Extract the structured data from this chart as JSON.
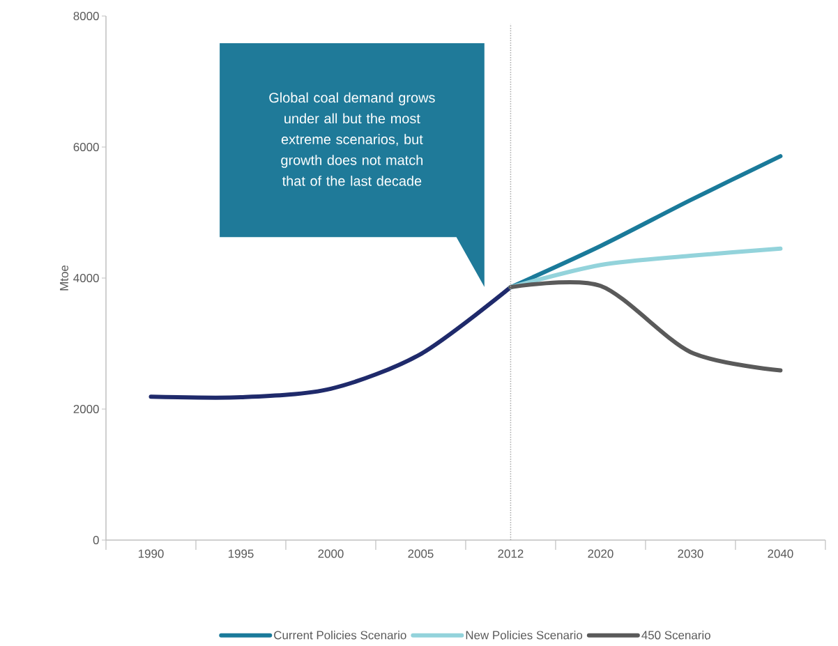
{
  "chart_data": {
    "type": "line",
    "ylabel": "Mtoe",
    "categories": [
      "1990",
      "1995",
      "2000",
      "2005",
      "2012",
      "2020",
      "2030",
      "2040"
    ],
    "series": [
      {
        "color": "#1f2a6b",
        "values": [
          2190,
          2180,
          2310,
          2840,
          3860,
          null,
          null,
          null
        ]
      },
      {
        "name": "Current Policies Scenario",
        "color": "#1a7a9a",
        "values": [
          null,
          null,
          null,
          null,
          3860,
          4490,
          5190,
          5860
        ]
      },
      {
        "name": "New Policies Scenario",
        "color": "#93d3db",
        "values": [
          null,
          null,
          null,
          null,
          3860,
          4200,
          4340,
          4450
        ]
      },
      {
        "name": "450 Scenario",
        "color": "#5a5a5a",
        "values": [
          null,
          null,
          null,
          null,
          3860,
          3880,
          2870,
          2590
        ]
      }
    ],
    "ylim": [
      0,
      8000
    ],
    "yticks": [
      0,
      2000,
      4000,
      6000,
      8000
    ],
    "ref_lines": [
      {
        "axis": "x",
        "value": "2012",
        "color": "#a6a6a6",
        "line_style": "dotted"
      }
    ],
    "annotations": [
      "Global coal demand grows under all but the most extreme scenarios, but growth does not match that of the last decade"
    ],
    "legend": "bottom",
    "grid": false,
    "marker": "none",
    "line_style": "solid"
  }
}
